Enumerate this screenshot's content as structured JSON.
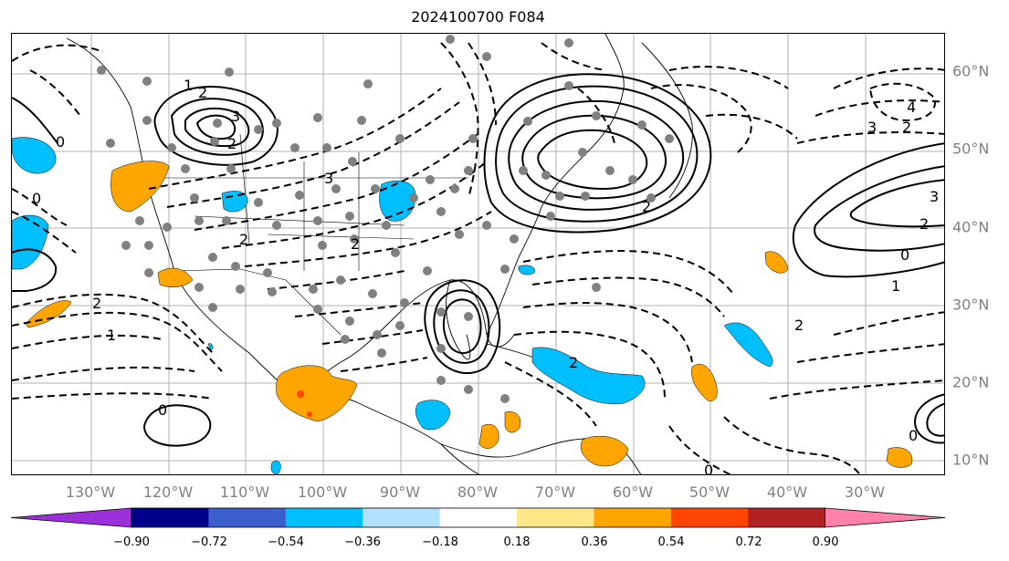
{
  "title": "2024100700 F084",
  "lat_labels": [
    "60°N",
    "50°N",
    "40°N",
    "30°N",
    "20°N",
    "10°N"
  ],
  "lon_labels": [
    "130°W",
    "120°W",
    "110°W",
    "100°W",
    "90°W",
    "80°W",
    "70°W",
    "60°W",
    "50°W",
    "40°W",
    "30°W"
  ],
  "colorbar": {
    "ticks": [
      "−0.90",
      "−0.72",
      "−0.54",
      "−0.36",
      "−0.18",
      "0.18",
      "0.36",
      "0.54",
      "0.72",
      "0.90"
    ],
    "colors": [
      "#9b30d9",
      "#9b30d9",
      "#00008b",
      "#3a5fcd",
      "#00bfff",
      "#b0e2ff",
      "#ffffff",
      "#ffe78a",
      "#ffa500",
      "#ff4500",
      "#b22222",
      "#ff82ab"
    ]
  },
  "contour_labels": {
    "c1": "1",
    "c2": "2",
    "c3": "3",
    "c4": "0",
    "c5": "2",
    "c6": "3",
    "c7": "2",
    "c8": "0",
    "c9": "2",
    "c10": "2",
    "c11": "3",
    "c12": "2",
    "c13": "4",
    "c14": "3",
    "c15": "2",
    "c16": "0",
    "c17": "1",
    "c18": "2",
    "c19": "0",
    "c20": "2",
    "c21": "0",
    "c22": "1",
    "c23": "0",
    "c24": "2"
  }
}
